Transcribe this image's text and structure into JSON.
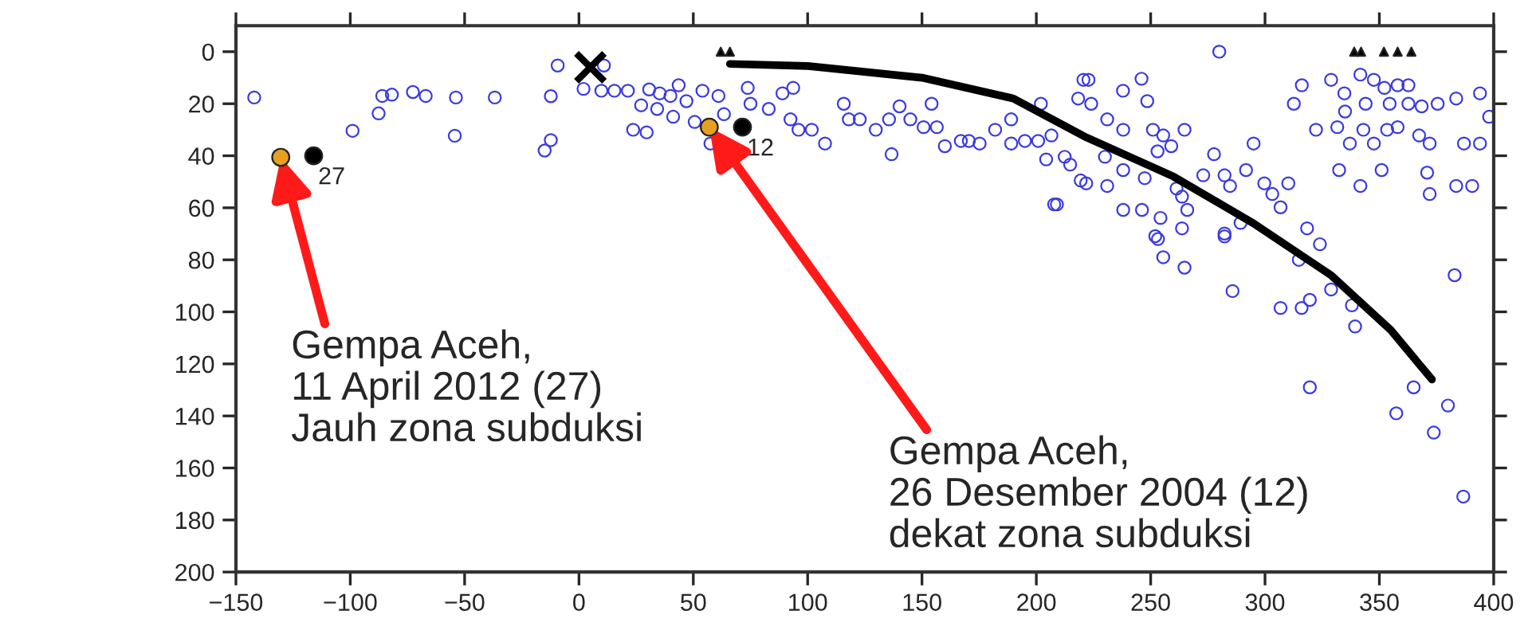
{
  "chart_data": {
    "type": "scatter",
    "xlim": [
      -150,
      400
    ],
    "ylim": [
      200,
      -10
    ],
    "xticks": [
      {
        "value": -150,
        "label": "−150"
      },
      {
        "value": -100,
        "label": "−100"
      },
      {
        "value": -50,
        "label": "−50"
      },
      0,
      50,
      100,
      150,
      200,
      250,
      300,
      350,
      400
    ],
    "yticks": [
      0,
      20,
      40,
      60,
      80,
      100,
      120,
      140,
      160,
      180,
      200
    ],
    "grid": false,
    "legend": false,
    "series": [
      {
        "marker": "circle",
        "color": "#3a3ae0",
        "x": [
          -142,
          -99,
          -87.6,
          -86,
          -81.8,
          -72.6,
          -67,
          -53.8,
          -54.3,
          -36.8,
          -12.3,
          -12.3,
          -15,
          -9.3,
          10.9,
          2,
          9.8,
          15.5,
          23.7,
          29.6,
          27.2,
          35.3,
          40,
          34.2,
          41.2,
          21.4,
          30.7,
          43.6,
          47,
          54,
          61,
          50.6,
          57.5,
          63.4,
          73.8,
          75,
          83,
          89,
          92.5,
          96,
          93.7,
          101.8,
          107.6,
          115.8,
          118,
          122.8,
          129.8,
          135.6,
          136.7,
          140.2,
          144.9,
          150.7,
          154.2,
          156.5,
          160,
          167,
          170.5,
          175.2,
          182,
          189,
          189,
          195,
          200.8,
          202,
          206.6,
          204.3,
          209,
          212.4,
          219.4,
          220.6,
          280,
          222.8,
          237.9,
          246,
          218.3,
          224,
          248.5,
          231,
          238,
          251,
          255.5,
          264.8,
          253,
          259,
          230,
          214.8,
          221.8,
          231,
          238,
          247.4,
          261.3,
          263.7,
          273,
          277.7,
          282.3,
          284.7,
          295,
          291.7,
          299.7,
          303.2,
          310.2,
          238,
          246.2,
          254.3,
          266,
          282.3,
          289.3,
          306.8,
          318.4,
          252,
          263.7,
          207.8,
          316.1,
          312.6,
          328.9,
          334.7,
          341.7,
          347.6,
          352.2,
          358,
          362.7,
          344,
          354.5,
          362.7,
          368.5,
          375.5,
          383.6,
          394,
          322.3,
          331.6,
          335,
          337.1,
          343,
          347.6,
          353.4,
          358,
          367.4,
          372,
          387,
          394,
          398,
          332.4,
          351,
          341.7,
          370.9,
          372,
          383.6,
          390.6,
          253.2,
          255.5,
          264.8,
          282.3,
          285.8,
          306.8,
          316,
          319.6,
          314.8,
          324,
          328.9,
          338,
          339.4,
          382.9,
          319.6,
          365,
          357.4,
          380,
          373.8,
          386.7
        ],
        "values": [
          17.6,
          30.4,
          23.7,
          17,
          16.5,
          15.5,
          17,
          17.6,
          32.3,
          17.6,
          17.1,
          34,
          38,
          5.3,
          5.3,
          14.3,
          15,
          15,
          30,
          31,
          20.6,
          16,
          17,
          22,
          25,
          15,
          14.5,
          12.9,
          19,
          15,
          17,
          27,
          35.3,
          24,
          13.9,
          20,
          22,
          16,
          26,
          30,
          13.9,
          30,
          35.3,
          20,
          26,
          26,
          30,
          26,
          39.4,
          21,
          26,
          29,
          20,
          29,
          36.3,
          34.3,
          34.3,
          35.3,
          30,
          26,
          35.3,
          34.3,
          34.3,
          20,
          32.2,
          41.4,
          58.7,
          40.4,
          49.5,
          10.8,
          0,
          10.8,
          15,
          10.4,
          18,
          20,
          19,
          26,
          30,
          30,
          32.2,
          30,
          38.3,
          36.3,
          40.4,
          43.4,
          50.6,
          51.6,
          45.5,
          48.6,
          52.6,
          55.7,
          47.5,
          39.4,
          47.5,
          51.6,
          35.3,
          45.5,
          50.6,
          54.7,
          50.6,
          60.8,
          60.8,
          63.9,
          60.8,
          69.9,
          65.8,
          59.8,
          67.9,
          70.9,
          67.9,
          58.7,
          12.9,
          20,
          10.8,
          16,
          8.8,
          10.8,
          13.9,
          12.9,
          12.9,
          20,
          20,
          20,
          21,
          20,
          18,
          16,
          30,
          29,
          23,
          35.3,
          30,
          35.3,
          30,
          29,
          32.2,
          35.3,
          35.3,
          35.3,
          25,
          45.5,
          45.5,
          51.6,
          46.5,
          54.7,
          51.6,
          51.6,
          72,
          79,
          83,
          71,
          92,
          98.5,
          98.5,
          95.4,
          80,
          74,
          91.4,
          97.5,
          105.6,
          85.9,
          129,
          129,
          139,
          136,
          146.4,
          171
        ]
      },
      {
        "type": "line",
        "marker": "none",
        "line_style": "solid",
        "color": "#000000",
        "x": [
          66,
          100,
          150,
          190,
          222,
          260,
          295,
          329,
          355,
          373
        ],
        "values": [
          4.7,
          5.5,
          10,
          18,
          33,
          48,
          66,
          86,
          107,
          126
        ]
      },
      {
        "marker": "triangle",
        "color": "#000000",
        "x": [
          62,
          66,
          339,
          342,
          352,
          358,
          364
        ],
        "values": [
          0,
          0,
          0,
          0,
          0,
          0,
          0
        ]
      },
      {
        "marker": "cross",
        "color": "#000000",
        "x": [
          5
        ],
        "values": [
          6
        ]
      },
      {
        "marker": "circle",
        "color": "#e8a020",
        "x": [
          -130.4,
          57
        ],
        "values": [
          40.6,
          29
        ]
      },
      {
        "marker": "circle",
        "color": "#000000",
        "x": [
          -116,
          71.5
        ],
        "values": [
          40,
          29
        ]
      }
    ],
    "annotations": [
      {
        "text": "27",
        "x": -116,
        "y": 40
      },
      {
        "text": "12",
        "x": 71.5,
        "y": 29
      },
      {
        "text": "Gempa Aceh,\n11 April 2012 (27)\nJauh zona subduksi",
        "x": -130.4,
        "y": 40.6
      },
      {
        "text": "Gempa Aceh,\n26 Desember 2004 (12)\ndekat zona subduksi",
        "x": 57,
        "y": 29
      }
    ]
  }
}
